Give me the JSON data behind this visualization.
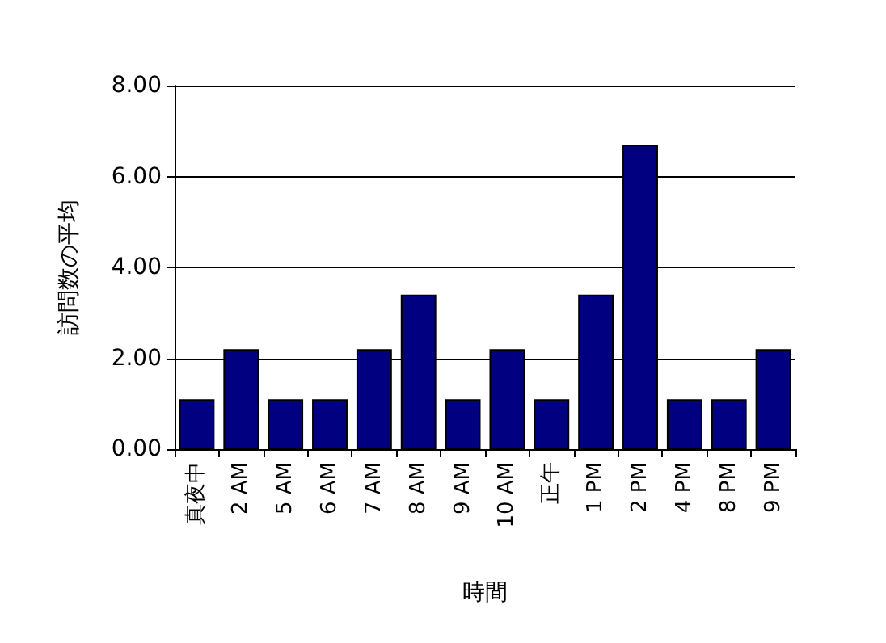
{
  "chart_data": {
    "type": "bar",
    "xlabel": "時間",
    "ylabel": "訪問数の平均",
    "categories": [
      "真夜中",
      "2 AM",
      "5 AM",
      "6 AM",
      "7 AM",
      "8 AM",
      "9 AM",
      "10 AM",
      "正午",
      "1 PM",
      "2 PM",
      "4 PM",
      "8 PM",
      "9 PM"
    ],
    "values": [
      1.1,
      2.2,
      1.1,
      1.1,
      2.2,
      3.4,
      1.1,
      2.2,
      1.1,
      3.4,
      6.7,
      1.1,
      1.1,
      2.2
    ],
    "color": "#000080",
    "ylim": [
      0,
      8
    ],
    "yticks": [
      {
        "value": 0,
        "label": "0.00"
      },
      {
        "value": 2,
        "label": "2.00"
      },
      {
        "value": 4,
        "label": "4.00"
      },
      {
        "value": 6,
        "label": "6.00"
      },
      {
        "value": 8,
        "label": "8.00"
      }
    ],
    "grid": "y"
  }
}
